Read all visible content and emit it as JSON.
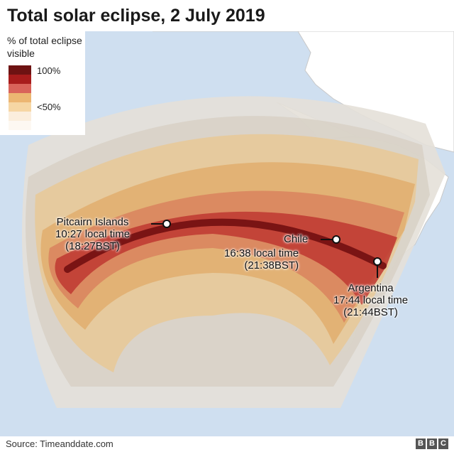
{
  "title": "Total solar eclipse, 2 July 2019",
  "legend": {
    "title": "% of total eclipse visible",
    "max_label": "100%",
    "min_label": "<50%",
    "colors": [
      "#6e1212",
      "#a81c1c",
      "#d9635a",
      "#ecb672",
      "#f6d6a4",
      "#fbeedd",
      "#fdf8f2"
    ]
  },
  "locations": [
    {
      "name": "Pitcairn Islands",
      "time": "10:27 local time",
      "bst": "(18:27BST)"
    },
    {
      "name": "Chile",
      "time": "16:38 local time",
      "bst": "(21:38BST)"
    },
    {
      "name": "Argentina",
      "time": "17:44 local time",
      "bst": "(21:44BST)"
    }
  ],
  "source": "Source: Timeanddate.com",
  "brand": [
    "B",
    "B",
    "C"
  ]
}
